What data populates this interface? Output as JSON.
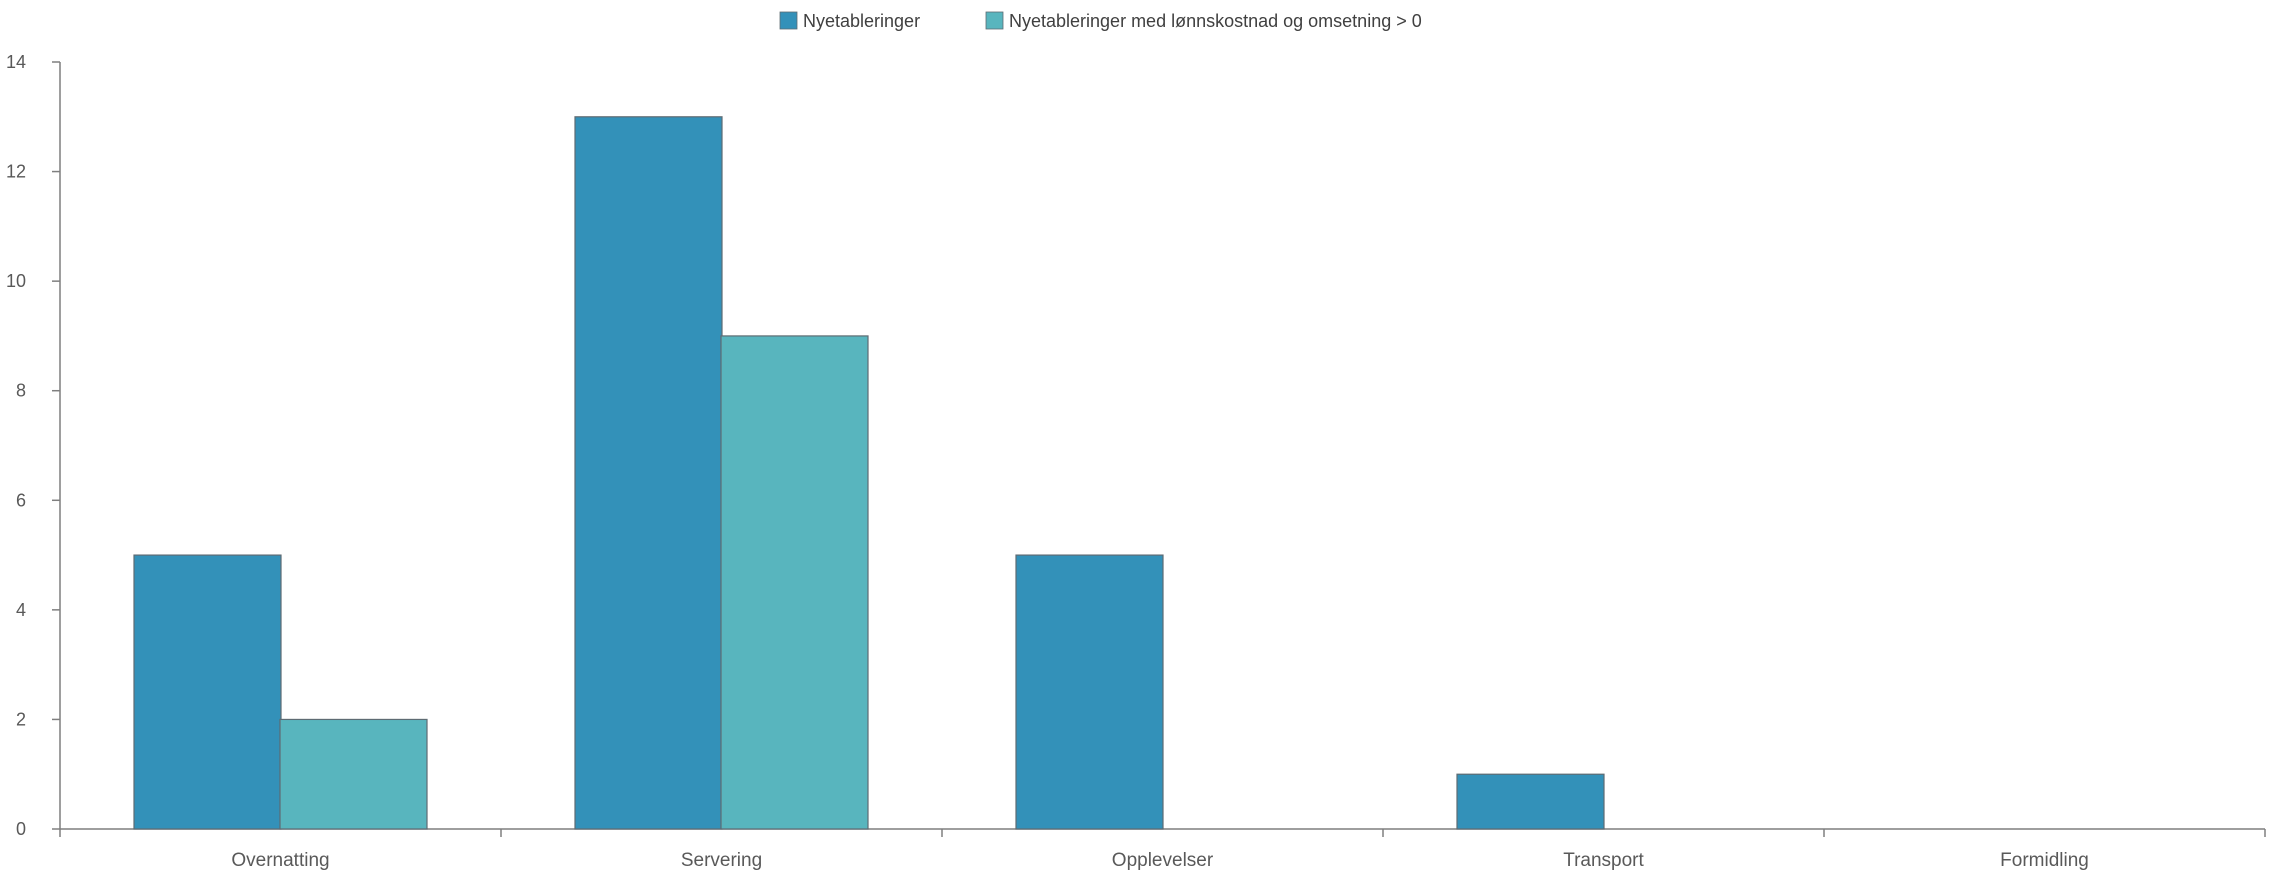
{
  "chart_data": {
    "type": "bar",
    "categories": [
      "Overnatting",
      "Servering",
      "Opplevelser",
      "Transport",
      "Formidling"
    ],
    "series": [
      {
        "name": "Nyetableringer",
        "values": [
          5,
          13,
          5,
          1,
          0
        ],
        "color": "#3391b9"
      },
      {
        "name": "Nyetableringer med lønnskostnad og omsetning > 0",
        "values": [
          2,
          9,
          0,
          0,
          0
        ],
        "color": "#58b5be"
      }
    ],
    "y_ticks": [
      "0",
      "2",
      "4",
      "6",
      "8",
      "10",
      "12",
      "14"
    ],
    "ylim": [
      0,
      14
    ],
    "grid": false,
    "legend_position": "top-center",
    "axis_color": "#7f7f7f",
    "bar_border_color": "#5e6b73"
  }
}
